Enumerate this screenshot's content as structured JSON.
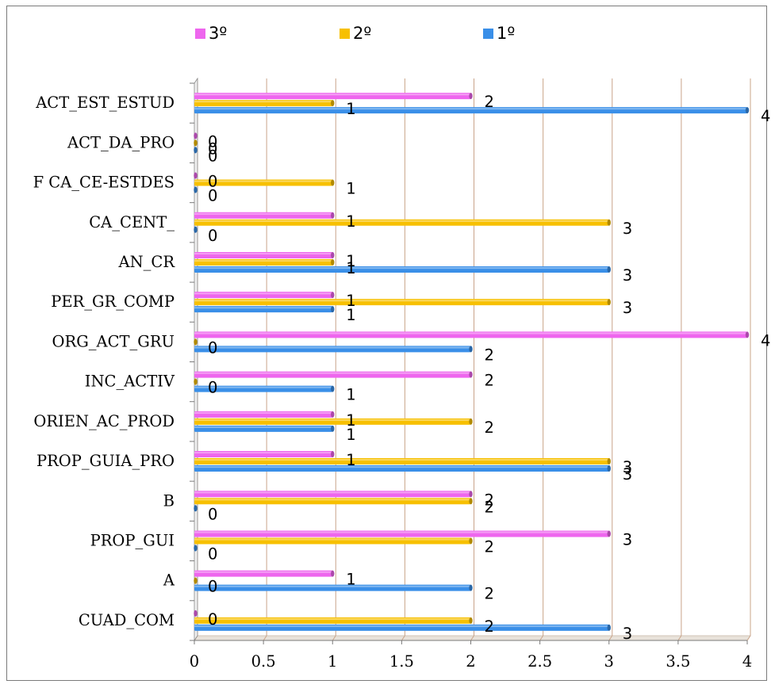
{
  "chart_data": {
    "type": "bar",
    "orientation": "horizontal",
    "categories": [
      "CUAD_COM",
      "A",
      "PROP_GUI",
      "B",
      "PROP_GUIA_PRO",
      "ORIEN_AC_PROD",
      "INC_ACTIV",
      "ORG_ACT_GRU",
      "PER_GR_COMP",
      "AN_CR",
      "CA_CENT_",
      "F CA_CE-ESTDES",
      "ACT_DA_PRO",
      "ACT_EST_ESTUD"
    ],
    "series": [
      {
        "name": "1º",
        "color": "#3a8fe8",
        "values": [
          3,
          2,
          0,
          0,
          3,
          1,
          1,
          2,
          1,
          3,
          0,
          0,
          0,
          4
        ]
      },
      {
        "name": "2º",
        "color": "#f7c000",
        "values": [
          2,
          0,
          2,
          2,
          3,
          2,
          0,
          0,
          3,
          1,
          3,
          1,
          0,
          1
        ]
      },
      {
        "name": "3º",
        "color": "#ee66ee",
        "values": [
          0,
          1,
          3,
          2,
          1,
          1,
          2,
          4,
          1,
          1,
          1,
          0,
          0,
          2
        ]
      }
    ],
    "xlim": [
      0,
      4
    ],
    "xticks": [
      "0",
      "0.5",
      "1",
      "1.5",
      "2",
      "2.5",
      "3",
      "3.5",
      "4"
    ],
    "grid": true,
    "legend": "top",
    "data_labels": true
  }
}
